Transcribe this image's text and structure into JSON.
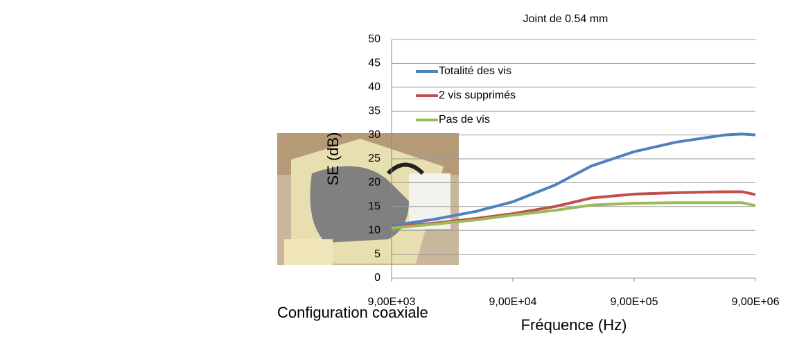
{
  "caption": "Configuration coaxiale",
  "chart_data": {
    "type": "line",
    "title": "Joint de 0.54 mm",
    "x_label": "Fréquence (Hz)",
    "y_label": "SE (dB)",
    "x": [
      9000,
      20000,
      45000,
      90000,
      200000,
      400000,
      900000,
      2000000,
      5000000,
      7000000,
      9000000
    ],
    "xscale": "log",
    "xlim": [
      9000,
      9000000
    ],
    "xticks": [
      {
        "value": 9000,
        "label": "9,00E+03"
      },
      {
        "value": 90000,
        "label": "9,00E+04"
      },
      {
        "value": 900000,
        "label": "9,00E+05"
      },
      {
        "value": 9000000,
        "label": "9,00E+06"
      }
    ],
    "ylim": [
      0,
      50
    ],
    "yticks": [
      0,
      5,
      10,
      15,
      20,
      25,
      30,
      35,
      40,
      45,
      50
    ],
    "grid": true,
    "legend": "top-left",
    "series": [
      {
        "name": "Totalité des vis",
        "color": "#4f81bd",
        "values": [
          11,
          12.3,
          14,
          16,
          19.5,
          23.5,
          26.5,
          28.5,
          30,
          30.2,
          30
        ]
      },
      {
        "name": "2 vis supprimés",
        "color": "#c0504d",
        "values": [
          10.7,
          11.5,
          12.5,
          13.5,
          15,
          16.8,
          17.6,
          17.9,
          18.1,
          18.1,
          17.5
        ]
      },
      {
        "name": "Pas de vis",
        "color": "#9bbb59",
        "values": [
          10.5,
          11.3,
          12.2,
          13.2,
          14.2,
          15.3,
          15.7,
          15.8,
          15.8,
          15.8,
          15.2
        ]
      }
    ]
  }
}
